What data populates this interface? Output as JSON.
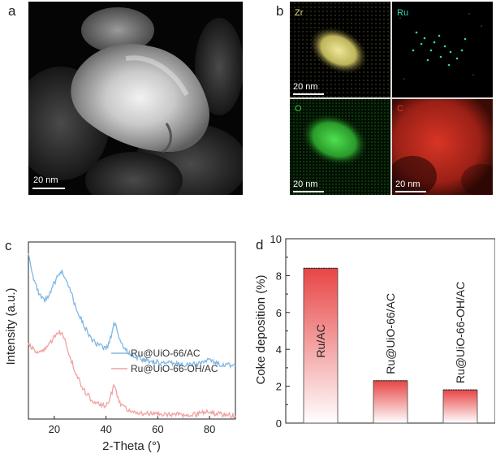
{
  "panels": {
    "a": {
      "letter": "a",
      "scale_bar": "20 nm"
    },
    "b": {
      "letter": "b",
      "maps": [
        {
          "element": "Zr",
          "scale_bar": "20 nm",
          "color": "#e8df8a"
        },
        {
          "element": "Ru",
          "scale_bar": "",
          "color": "#2fd8b2"
        },
        {
          "element": "O",
          "scale_bar": "20 nm",
          "color": "#3cc43c"
        },
        {
          "element": "C",
          "scale_bar": "20 nm",
          "color": "#e23a2a"
        }
      ]
    },
    "c": {
      "letter": "c"
    },
    "d": {
      "letter": "d"
    }
  },
  "chart_data": [
    {
      "type": "line",
      "xlabel": "2-Theta (°)",
      "ylabel": "Intensity (a.u.)",
      "xlim": [
        10,
        90
      ],
      "xticks": [
        "20",
        "40",
        "60",
        "80"
      ],
      "yticks": [],
      "legend_position": "right",
      "series": [
        {
          "name": "Ru@UiO-66/AC",
          "color": "#7fb8e6",
          "x": [
            10,
            12,
            14,
            16,
            18,
            20,
            22,
            23,
            24,
            26,
            28,
            30,
            32,
            34,
            36,
            38,
            40,
            41,
            42,
            43,
            44,
            45,
            46,
            48,
            50,
            55,
            60,
            65,
            70,
            75,
            78,
            80,
            82,
            85,
            90
          ],
          "y": [
            7.3,
            6.2,
            5.5,
            5.2,
            5.4,
            6.0,
            6.4,
            6.5,
            6.3,
            5.8,
            5.0,
            4.5,
            4.0,
            3.6,
            3.3,
            3.2,
            3.1,
            3.3,
            3.7,
            4.2,
            4.1,
            3.6,
            3.3,
            3.0,
            2.8,
            2.6,
            2.5,
            2.45,
            2.4,
            2.4,
            2.55,
            2.6,
            2.5,
            2.4,
            2.35
          ]
        },
        {
          "name": "Ru@UiO-66-OH/AC",
          "color": "#f2a0a0",
          "x": [
            10,
            12,
            14,
            16,
            18,
            20,
            22,
            23,
            24,
            26,
            28,
            30,
            32,
            34,
            36,
            38,
            40,
            41,
            42,
            43,
            44,
            45,
            46,
            48,
            50,
            55,
            60,
            65,
            70,
            75,
            78,
            80,
            82,
            85,
            90
          ],
          "y": [
            3.3,
            3.1,
            2.9,
            3.0,
            3.3,
            3.6,
            3.8,
            3.8,
            3.5,
            2.8,
            2.1,
            1.6,
            1.2,
            0.9,
            0.7,
            0.6,
            0.6,
            0.8,
            1.1,
            1.4,
            1.2,
            0.8,
            0.6,
            0.45,
            0.35,
            0.25,
            0.2,
            0.2,
            0.2,
            0.2,
            0.3,
            0.35,
            0.25,
            0.2,
            0.15
          ]
        }
      ]
    },
    {
      "type": "bar",
      "xlabel": "",
      "ylabel": "Coke deposition (%)",
      "ylim": [
        0,
        10
      ],
      "yticks": [
        "0",
        "2",
        "4",
        "6",
        "8",
        "10"
      ],
      "categories": [
        "Ru/AC",
        "Ru@UiO-66/AC",
        "Ru@UiO-66-OH/AC"
      ],
      "values": [
        8.4,
        2.3,
        1.8
      ],
      "bar_color": "#e84545"
    }
  ]
}
